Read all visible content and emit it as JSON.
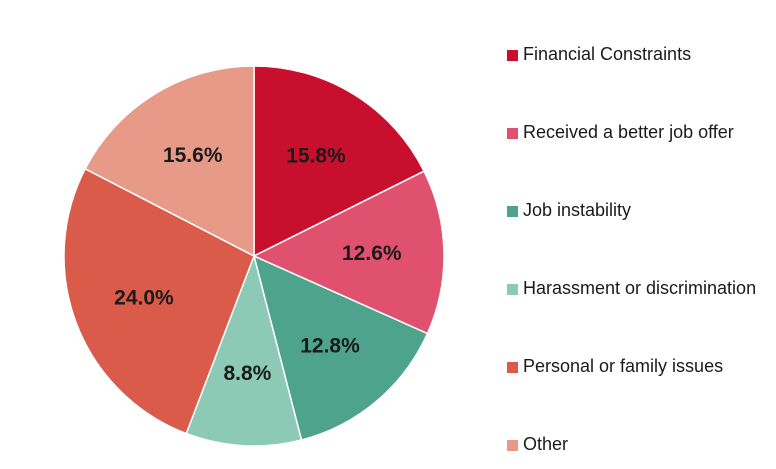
{
  "chart_data": {
    "type": "pie",
    "title": "",
    "start_angle": "12 o'clock",
    "direction": "clockwise",
    "slices": [
      {
        "label": "Financial Constraints",
        "value": 15.8,
        "display": "15.8%",
        "color": "#c8102e"
      },
      {
        "label": "Received a better job offer",
        "value": 12.6,
        "display": "12.6%",
        "color": "#e05170"
      },
      {
        "label": "Job instability",
        "value": 12.8,
        "display": "12.8%",
        "color": "#4ea38c"
      },
      {
        "label": "Harassment or discrimination",
        "value": 8.8,
        "display": "8.8%",
        "color": "#8ccab6"
      },
      {
        "label": "Personal or family issues",
        "value": 24.0,
        "display": "24.0%",
        "color": "#da5b49"
      },
      {
        "label": "Other",
        "value": 15.6,
        "display": "15.6%",
        "color": "#e79a87"
      }
    ],
    "legend_position": "right"
  }
}
